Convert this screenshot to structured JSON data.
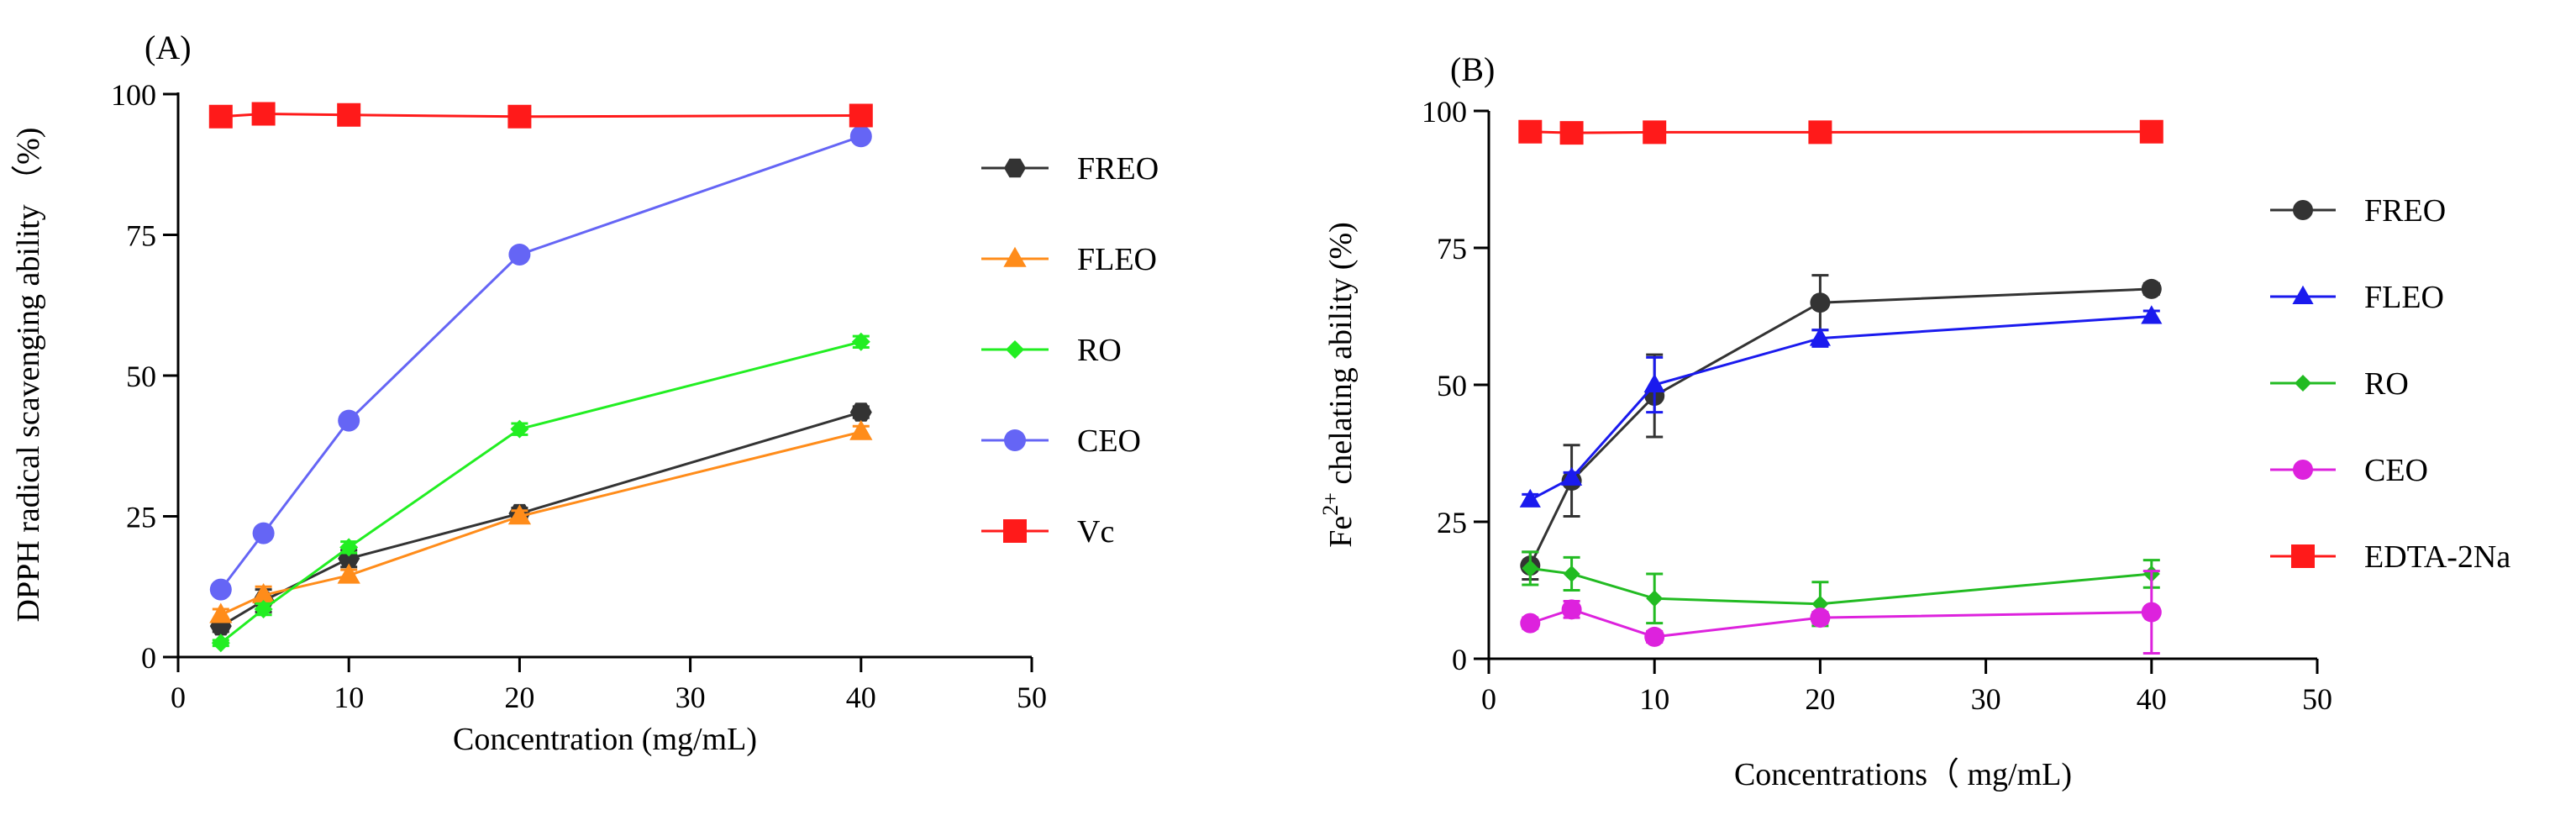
{
  "chart_data": [
    {
      "type": "line",
      "panel_label": "(A)",
      "title": "",
      "xlabel": "Concentration (mg/mL)",
      "ylabel": "DPPH radical scavenging ability （%)",
      "xlim": [
        0,
        50
      ],
      "ylim": [
        0,
        100
      ],
      "xticks": [
        0,
        10,
        20,
        30,
        40,
        50
      ],
      "yticks": [
        0,
        25,
        50,
        75,
        100
      ],
      "grid": false,
      "legend_position": "right",
      "x": [
        2.5,
        5,
        10,
        20,
        40
      ],
      "series": [
        {
          "name": "FREO",
          "color": "#333333",
          "marker": "hexagon",
          "values": [
            5.5,
            10,
            17.5,
            25.5,
            43.5
          ],
          "errors": [
            1,
            2,
            1.5,
            1,
            1
          ]
        },
        {
          "name": "FLEO",
          "color": "#ff8c1a",
          "marker": "triangle",
          "values": [
            7.5,
            11,
            14.5,
            25,
            40
          ],
          "errors": [
            1,
            1.5,
            1,
            1,
            1
          ]
        },
        {
          "name": "RO",
          "color": "#22ee22",
          "marker": "diamond",
          "values": [
            2.5,
            8.5,
            19.5,
            40.5,
            56
          ],
          "errors": [
            0.5,
            1,
            1,
            1,
            1
          ]
        },
        {
          "name": "CEO",
          "color": "#6565f5",
          "marker": "circle",
          "values": [
            12,
            22,
            42,
            71.5,
            92.5
          ],
          "errors": [
            0.5,
            0.5,
            0.5,
            0.5,
            0.5
          ]
        },
        {
          "name": "Vc",
          "color": "#ff1a1a",
          "marker": "square",
          "values": [
            96,
            96.5,
            96.3,
            96,
            96.2
          ],
          "errors": [
            0.3,
            0.3,
            0.3,
            0.3,
            0.3
          ]
        }
      ]
    },
    {
      "type": "line",
      "panel_label": "(B)",
      "title": "",
      "xlabel": "Concentrations（ mg/mL)",
      "ylabel_prefix": "Fe",
      "ylabel_superscript": "2+",
      "ylabel_suffix": " chelating ability (%)",
      "xlim": [
        0,
        50
      ],
      "ylim": [
        0,
        100
      ],
      "xticks": [
        0,
        10,
        20,
        30,
        40,
        50
      ],
      "yticks": [
        0,
        25,
        50,
        75,
        100
      ],
      "grid": false,
      "legend_position": "right",
      "x": [
        2.5,
        5,
        10,
        20,
        40
      ],
      "series": [
        {
          "name": "FREO",
          "color": "#333333",
          "marker": "circle",
          "values": [
            17,
            32.5,
            48,
            65,
            67.5
          ],
          "errors": [
            2.5,
            6.5,
            7.5,
            5,
            1
          ]
        },
        {
          "name": "FLEO",
          "color": "#1a1aee",
          "marker": "triangle",
          "values": [
            29,
            33,
            50,
            58.5,
            62.5
          ],
          "errors": [
            1,
            1,
            5,
            1.5,
            1
          ]
        },
        {
          "name": "RO",
          "color": "#22bb22",
          "marker": "diamond",
          "values": [
            16.5,
            15.5,
            11,
            10,
            15.5
          ],
          "errors": [
            3,
            3,
            4.5,
            4,
            2.5
          ]
        },
        {
          "name": "CEO",
          "color": "#dd22dd",
          "marker": "circle",
          "values": [
            6.5,
            9,
            4,
            7.5,
            8.5
          ],
          "errors": [
            1,
            1.5,
            1,
            1,
            7.5
          ]
        },
        {
          "name": "EDTA-2Na",
          "color": "#ff1a1a",
          "marker": "square",
          "values": [
            96.2,
            96,
            96.1,
            96.1,
            96.2
          ],
          "errors": [
            0.3,
            0.3,
            0.3,
            0.3,
            0.3
          ]
        }
      ]
    }
  ]
}
